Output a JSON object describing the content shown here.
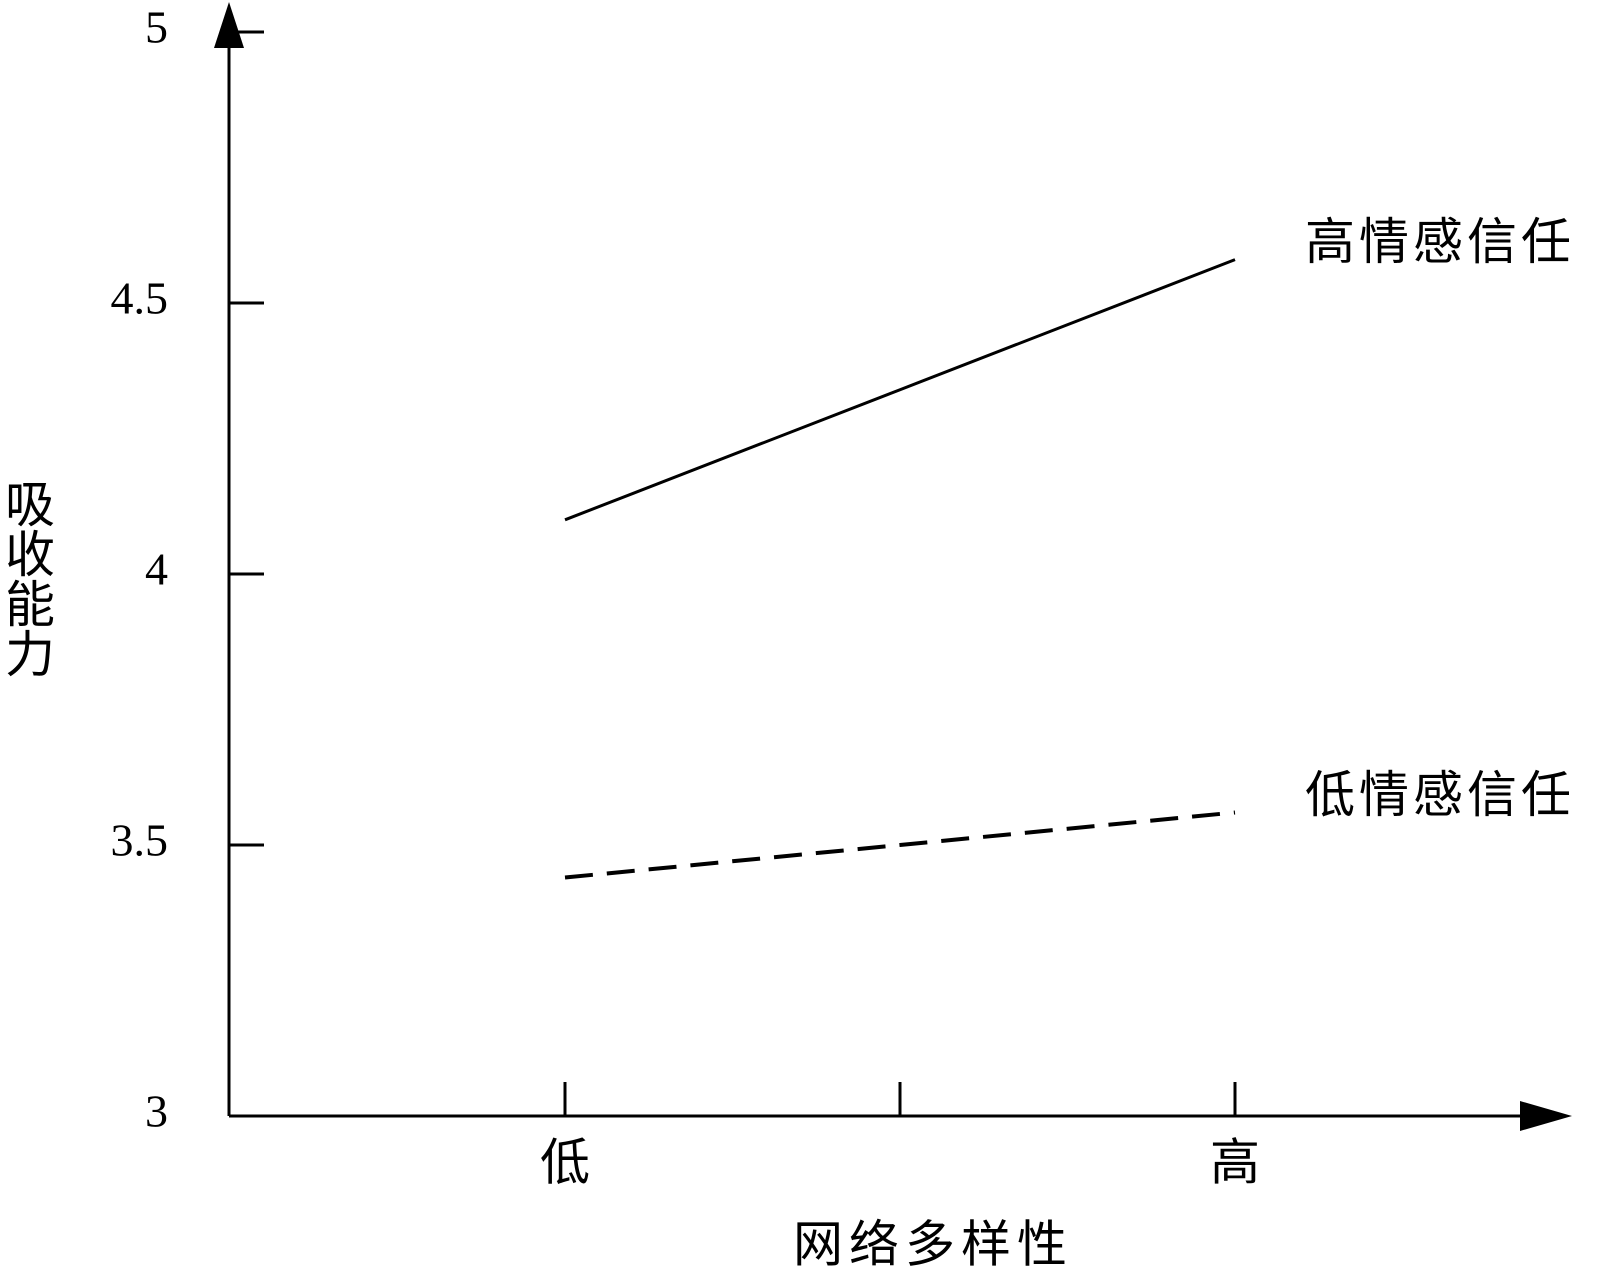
{
  "chart_data": {
    "type": "line",
    "x_label": "网络多样性",
    "y_label": "吸收能力",
    "categories": [
      "低",
      null,
      "高"
    ],
    "series": [
      {
        "name": "高情感信任",
        "color": "#000000",
        "style": "solid",
        "values": [
          4.1,
          4.34,
          4.58
        ]
      },
      {
        "name": "低情感信任",
        "color": "#000000",
        "style": "dashed",
        "values": [
          3.44,
          3.5,
          3.56
        ]
      }
    ],
    "ylim": [
      3,
      5
    ],
    "yticks": [
      3,
      3.5,
      4,
      4.5,
      5
    ],
    "grid": false
  }
}
